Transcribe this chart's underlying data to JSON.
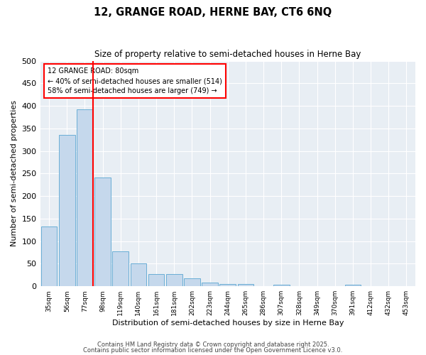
{
  "title1": "12, GRANGE ROAD, HERNE BAY, CT6 6NQ",
  "title2": "Size of property relative to semi-detached houses in Herne Bay",
  "xlabel": "Distribution of semi-detached houses by size in Herne Bay",
  "ylabel": "Number of semi-detached properties",
  "categories": [
    "35sqm",
    "56sqm",
    "77sqm",
    "98sqm",
    "119sqm",
    "140sqm",
    "161sqm",
    "181sqm",
    "202sqm",
    "223sqm",
    "244sqm",
    "265sqm",
    "286sqm",
    "307sqm",
    "328sqm",
    "349sqm",
    "370sqm",
    "391sqm",
    "412sqm",
    "432sqm",
    "453sqm"
  ],
  "values": [
    133,
    335,
    393,
    241,
    78,
    51,
    27,
    27,
    18,
    8,
    5,
    5,
    0,
    4,
    0,
    0,
    0,
    3,
    0,
    0,
    0
  ],
  "bar_color": "#c5d8ec",
  "bar_edge_color": "#6aaed6",
  "red_line_index": 2,
  "annotation_label": "12 GRANGE ROAD: 80sqm",
  "annotation_line1": "← 40% of semi-detached houses are smaller (514)",
  "annotation_line2": "58% of semi-detached houses are larger (749) →",
  "ylim": [
    0,
    500
  ],
  "yticks": [
    0,
    50,
    100,
    150,
    200,
    250,
    300,
    350,
    400,
    450,
    500
  ],
  "footnote1": "Contains HM Land Registry data © Crown copyright and database right 2025.",
  "footnote2": "Contains public sector information licensed under the Open Government Licence v3.0.",
  "fig_bg_color": "#ffffff",
  "plot_bg_color": "#e8eef4",
  "grid_color": "#ffffff"
}
